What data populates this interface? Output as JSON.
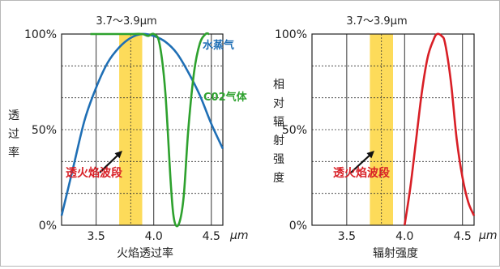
{
  "chart_data": [
    {
      "type": "line",
      "title": "",
      "band_label": "3.7～3.9μm",
      "band": [
        3.7,
        3.9
      ],
      "xlabel": "火焰透过率",
      "xunit": "μm",
      "ylabel": "透过率",
      "xlim": [
        3.2,
        4.6
      ],
      "ylim": [
        0,
        100
      ],
      "xticks": [
        "3.5",
        "4.0",
        "4.5"
      ],
      "yticks": [
        "0%",
        "50%",
        "100%"
      ],
      "grid": true,
      "annotation": "透火焰波段",
      "series": [
        {
          "name": "水蒸气",
          "color": "#1f6fb5",
          "x": [
            3.2,
            3.3,
            3.4,
            3.5,
            3.6,
            3.7,
            3.8,
            3.9,
            4.0,
            4.1,
            4.2,
            4.3,
            4.4,
            4.5,
            4.6
          ],
          "y": [
            5,
            30,
            55,
            72,
            85,
            93,
            98,
            100,
            99,
            96,
            90,
            80,
            68,
            53,
            40
          ]
        },
        {
          "name": "C02气体",
          "color": "#2ea12e",
          "x": [
            3.45,
            3.6,
            3.8,
            3.9,
            3.95,
            4.0,
            4.05,
            4.1,
            4.15,
            4.18,
            4.22,
            4.26,
            4.3,
            4.35,
            4.4,
            4.45,
            4.48
          ],
          "y": [
            100,
            100,
            100,
            100,
            99,
            100,
            95,
            70,
            20,
            2,
            1,
            15,
            50,
            80,
            95,
            100,
            100
          ]
        }
      ]
    },
    {
      "type": "line",
      "title": "",
      "band_label": "3.7～3.9μm",
      "band": [
        3.7,
        3.9
      ],
      "xlabel": "辐射强度",
      "xunit": "μm",
      "ylabel": "相对辐射强度",
      "xlim": [
        3.2,
        4.6
      ],
      "ylim": [
        0,
        100
      ],
      "xticks": [
        "3.5",
        "4.0",
        "4.5"
      ],
      "yticks": [
        "0%",
        "50%",
        "100%"
      ],
      "grid": true,
      "annotation": "透火焰波段",
      "series": [
        {
          "name": "",
          "color": "#d81f26",
          "x": [
            4.0,
            4.05,
            4.1,
            4.15,
            4.2,
            4.25,
            4.28,
            4.32,
            4.35,
            4.4,
            4.45,
            4.5,
            4.55,
            4.6
          ],
          "y": [
            0,
            20,
            45,
            70,
            88,
            97,
            100,
            99,
            95,
            75,
            45,
            25,
            12,
            5
          ]
        }
      ]
    }
  ]
}
